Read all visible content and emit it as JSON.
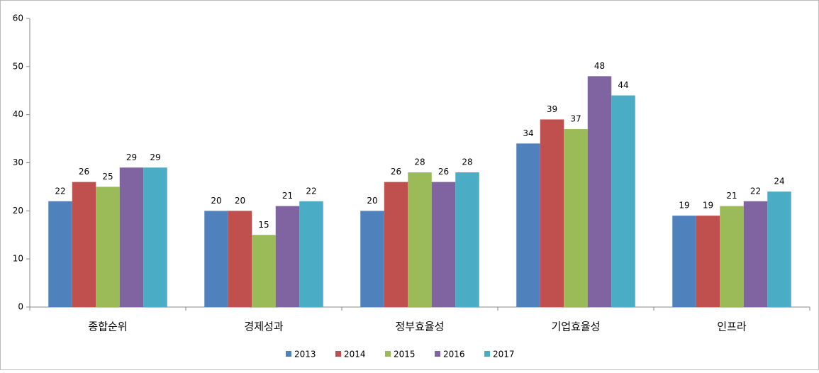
{
  "chart_data": {
    "type": "bar",
    "categories": [
      "종합순위",
      "경제성과",
      "정부효율성",
      "기업효율성",
      "인프라"
    ],
    "series": [
      {
        "name": "2013",
        "color": "#4f81bd",
        "values": [
          22,
          20,
          20,
          34,
          19
        ]
      },
      {
        "name": "2014",
        "color": "#c0504d",
        "values": [
          26,
          20,
          26,
          39,
          19
        ]
      },
      {
        "name": "2015",
        "color": "#9bbb59",
        "values": [
          25,
          15,
          28,
          37,
          21
        ]
      },
      {
        "name": "2016",
        "color": "#8064a2",
        "values": [
          29,
          21,
          26,
          48,
          22
        ]
      },
      {
        "name": "2017",
        "color": "#4bacc6",
        "values": [
          29,
          22,
          28,
          44,
          24
        ]
      }
    ],
    "ylim": [
      0,
      60
    ],
    "yticks": [
      0,
      10,
      20,
      30,
      40,
      50,
      60
    ],
    "grid": false,
    "legend": "bottom"
  }
}
